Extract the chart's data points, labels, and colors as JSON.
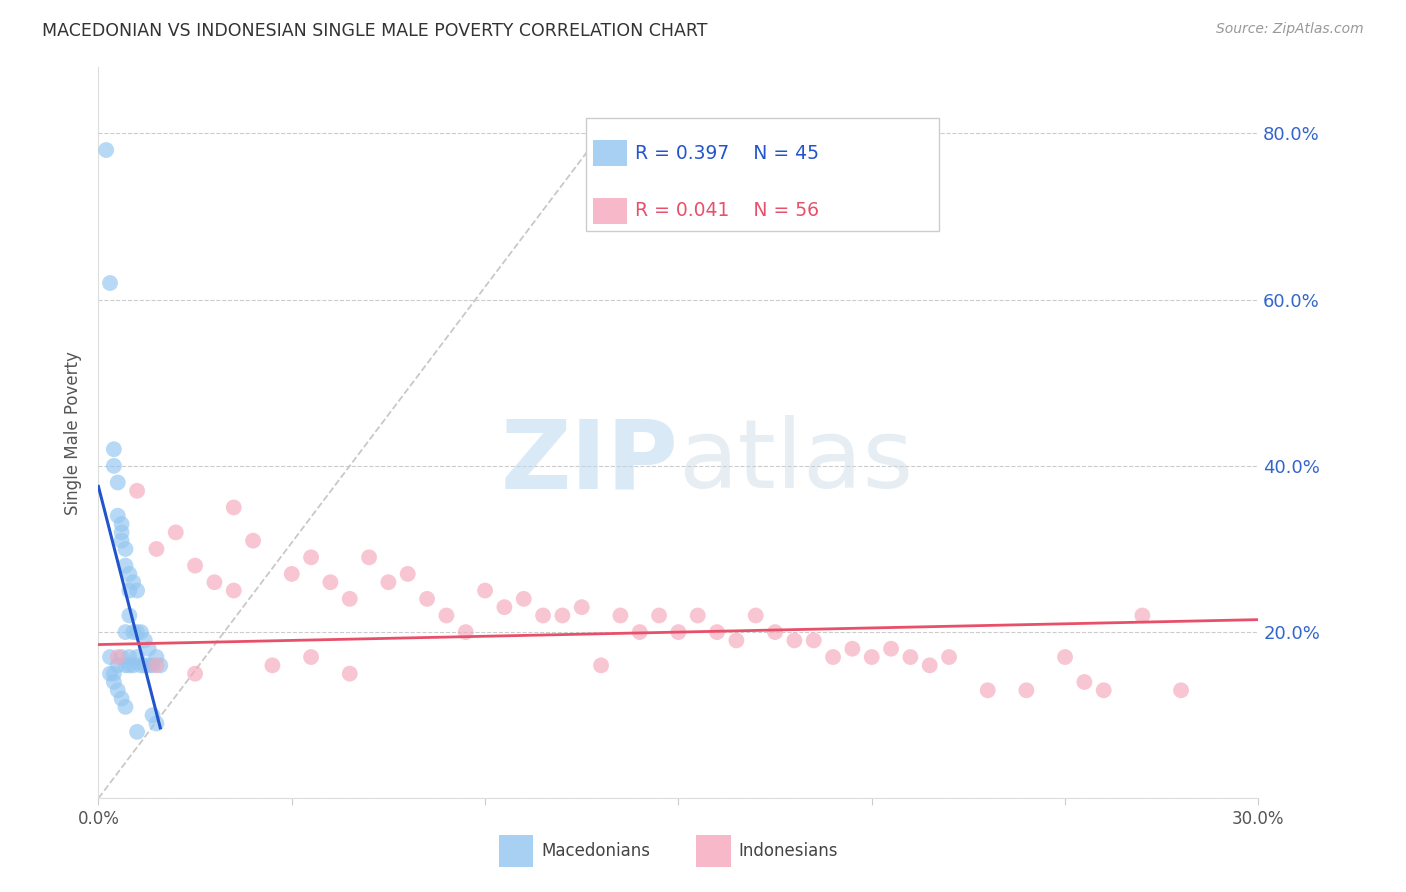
{
  "title": "MACEDONIAN VS INDONESIAN SINGLE MALE POVERTY CORRELATION CHART",
  "source": "Source: ZipAtlas.com",
  "ylabel": "Single Male Poverty",
  "watermark_zip": "ZIP",
  "watermark_atlas": "atlas",
  "xlim": [
    0.0,
    0.3
  ],
  "ylim": [
    0.0,
    0.88
  ],
  "yticks": [
    0.0,
    0.2,
    0.4,
    0.6,
    0.8
  ],
  "xtick_vals": [
    0.0,
    0.05,
    0.1,
    0.15,
    0.2,
    0.25,
    0.3
  ],
  "xtick_labels": [
    "0.0%",
    "",
    "",
    "",
    "",
    "",
    "30.0%"
  ],
  "ytick_labels_right": [
    "",
    "20.0%",
    "40.0%",
    "60.0%",
    "80.0%"
  ],
  "color_macedonian": "#92C5F0",
  "color_indonesian": "#F5A8BC",
  "color_reg_macedonian": "#2255CC",
  "color_reg_indonesian": "#E8506A",
  "color_diag": "#BBBBBB",
  "legend_R1": "R = 0.397",
  "legend_N1": "N = 45",
  "legend_R2": "R = 0.041",
  "legend_N2": "N = 56",
  "mac_x": [
    0.002,
    0.003,
    0.003,
    0.004,
    0.004,
    0.004,
    0.005,
    0.005,
    0.005,
    0.006,
    0.006,
    0.006,
    0.006,
    0.007,
    0.007,
    0.007,
    0.007,
    0.008,
    0.008,
    0.008,
    0.008,
    0.009,
    0.009,
    0.009,
    0.01,
    0.01,
    0.01,
    0.011,
    0.011,
    0.012,
    0.012,
    0.013,
    0.013,
    0.014,
    0.014,
    0.015,
    0.015,
    0.016,
    0.003,
    0.004,
    0.005,
    0.006,
    0.007,
    0.008,
    0.01
  ],
  "mac_y": [
    0.78,
    0.62,
    0.17,
    0.42,
    0.4,
    0.15,
    0.38,
    0.34,
    0.16,
    0.33,
    0.32,
    0.31,
    0.17,
    0.3,
    0.28,
    0.2,
    0.16,
    0.27,
    0.25,
    0.22,
    0.17,
    0.26,
    0.2,
    0.16,
    0.25,
    0.2,
    0.17,
    0.2,
    0.16,
    0.19,
    0.16,
    0.18,
    0.16,
    0.16,
    0.1,
    0.17,
    0.09,
    0.16,
    0.15,
    0.14,
    0.13,
    0.12,
    0.11,
    0.16,
    0.08
  ],
  "ind_x": [
    0.005,
    0.01,
    0.015,
    0.02,
    0.025,
    0.03,
    0.035,
    0.04,
    0.05,
    0.055,
    0.06,
    0.065,
    0.07,
    0.075,
    0.08,
    0.085,
    0.09,
    0.095,
    0.1,
    0.105,
    0.11,
    0.115,
    0.12,
    0.125,
    0.13,
    0.135,
    0.14,
    0.145,
    0.15,
    0.155,
    0.16,
    0.165,
    0.17,
    0.175,
    0.18,
    0.185,
    0.19,
    0.195,
    0.2,
    0.205,
    0.21,
    0.215,
    0.22,
    0.23,
    0.24,
    0.25,
    0.255,
    0.26,
    0.27,
    0.28,
    0.015,
    0.025,
    0.035,
    0.045,
    0.055,
    0.065
  ],
  "ind_y": [
    0.17,
    0.37,
    0.3,
    0.32,
    0.28,
    0.26,
    0.35,
    0.31,
    0.27,
    0.29,
    0.26,
    0.24,
    0.29,
    0.26,
    0.27,
    0.24,
    0.22,
    0.2,
    0.25,
    0.23,
    0.24,
    0.22,
    0.22,
    0.23,
    0.16,
    0.22,
    0.2,
    0.22,
    0.2,
    0.22,
    0.2,
    0.19,
    0.22,
    0.2,
    0.19,
    0.19,
    0.17,
    0.18,
    0.17,
    0.18,
    0.17,
    0.16,
    0.17,
    0.13,
    0.13,
    0.17,
    0.14,
    0.13,
    0.22,
    0.13,
    0.16,
    0.15,
    0.25,
    0.16,
    0.17,
    0.15
  ]
}
